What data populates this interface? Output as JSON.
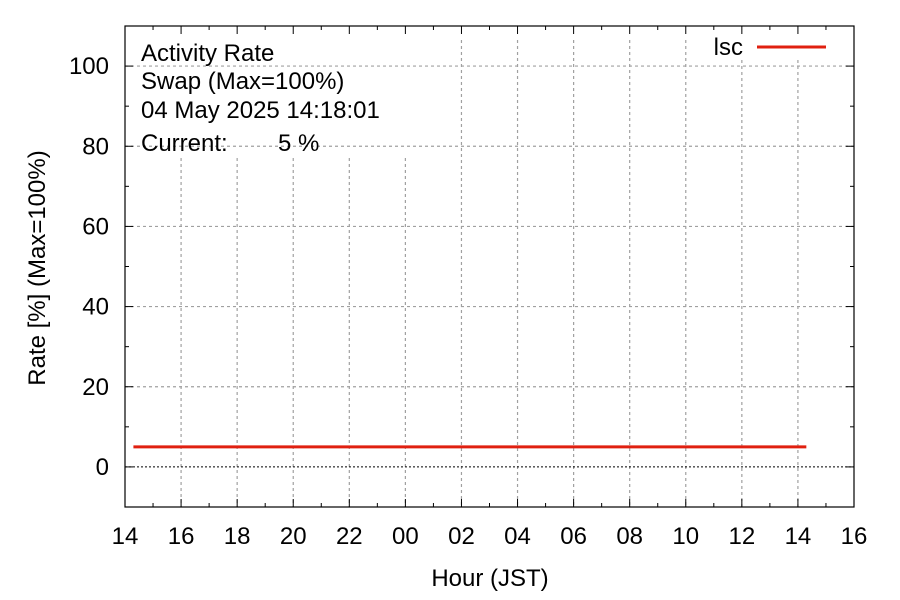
{
  "annotations": {
    "line1": "Activity Rate",
    "line2": "Swap (Max=100%)",
    "line3": "04 May 2025 14:18:01",
    "current_label": "Current:",
    "current_value": "5 %",
    "current_color": "#e02010"
  },
  "chart_data": {
    "type": "line",
    "title": "Activity Rate",
    "xlabel": "Hour (JST)",
    "ylabel": "Rate [%]  (Max=100%)",
    "x_tick_labels": [
      "14",
      "16",
      "18",
      "20",
      "22",
      "00",
      "02",
      "04",
      "06",
      "08",
      "10",
      "12",
      "14",
      "16"
    ],
    "xlim": [
      0,
      26
    ],
    "ylim": [
      -10,
      110
    ],
    "y_ticks": [
      0,
      20,
      40,
      60,
      80,
      100
    ],
    "grid": true,
    "legend_position": "top-right",
    "series": [
      {
        "name": "lsc",
        "color": "#e02010",
        "x": [
          0.3,
          24.3
        ],
        "y": [
          5,
          5
        ]
      }
    ]
  }
}
